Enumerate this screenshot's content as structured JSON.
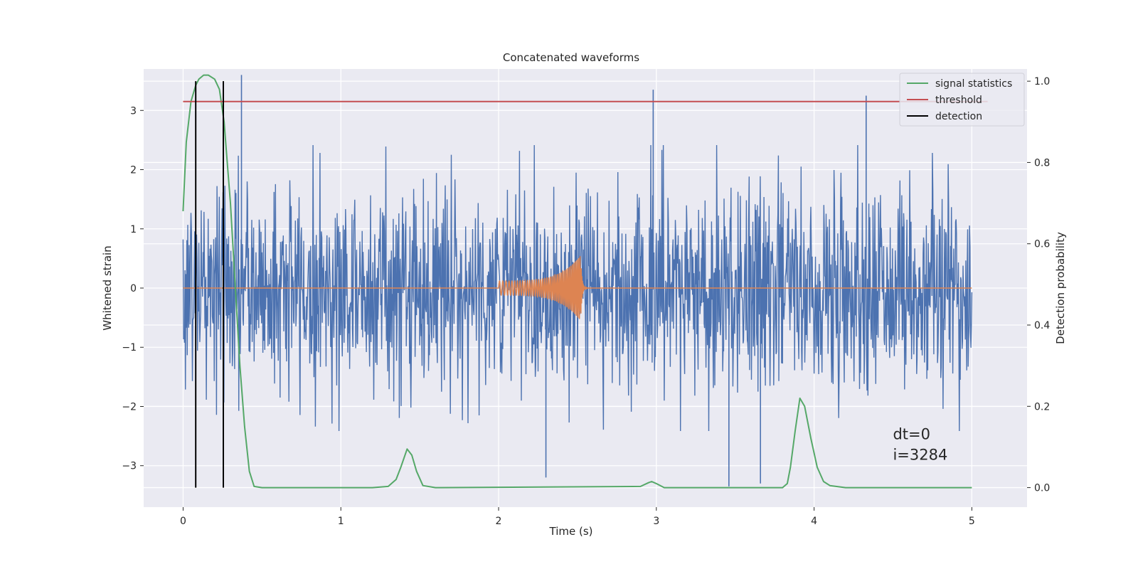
{
  "chart_data": {
    "type": "line",
    "title": "Concatenated waveforms",
    "xlabel": "Time (s)",
    "ylabel": "Whitened strain",
    "y2label": "Detection probability",
    "xlim": [
      -0.25,
      5.35
    ],
    "ylim": [
      -3.7,
      3.7
    ],
    "y2lim": [
      -0.048,
      1.03
    ],
    "xticks": [
      0,
      1,
      2,
      3,
      4,
      5
    ],
    "yticks": [
      -3,
      -2,
      -1,
      0,
      1,
      2,
      3
    ],
    "y2ticks": [
      0.0,
      0.2,
      0.4,
      0.6,
      0.8,
      1.0
    ],
    "y2ticklabels": [
      "0.0",
      "0.2",
      "0.4",
      "0.6",
      "0.8",
      "1.0"
    ],
    "grid": true,
    "legend_position": "top-right",
    "background": "#eaeaf2",
    "series": [
      {
        "name": "whitened strain",
        "color": "#4c72b0",
        "axis": "left",
        "kind": "noise",
        "x_range": [
          0,
          5
        ],
        "typical_peak": 2.3,
        "extreme_peaks": [
          {
            "x": 0.37,
            "y": 3.6
          },
          {
            "x": 2.98,
            "y": 3.35
          },
          {
            "x": 4.33,
            "y": 3.25
          },
          {
            "x": 2.3,
            "y": -3.2
          },
          {
            "x": 3.46,
            "y": -3.35
          },
          {
            "x": 3.66,
            "y": -3.3
          }
        ]
      },
      {
        "name": "injected signal",
        "color": "#dd8452",
        "axis": "left",
        "kind": "chirp",
        "x_range": [
          0,
          5
        ],
        "chirp_start": 2.0,
        "merger": 2.52,
        "amplitude_start": 0.12,
        "amplitude_merger": 0.55
      },
      {
        "name": "signal statistics",
        "color": "#55a868",
        "axis": "right",
        "x": [
          0.0,
          0.02,
          0.05,
          0.08,
          0.1,
          0.13,
          0.16,
          0.2,
          0.23,
          0.26,
          0.28,
          0.3,
          0.33,
          0.36,
          0.39,
          0.42,
          0.45,
          0.5,
          1.2,
          1.3,
          1.35,
          1.38,
          1.42,
          1.45,
          1.48,
          1.52,
          1.6,
          2.9,
          2.95,
          2.97,
          3.0,
          3.05,
          3.8,
          3.83,
          3.85,
          3.88,
          3.91,
          3.94,
          3.98,
          4.02,
          4.06,
          4.1,
          4.2,
          4.5,
          5.0
        ],
        "values": [
          0.68,
          0.85,
          0.95,
          0.99,
          1.005,
          1.015,
          1.015,
          1.005,
          0.98,
          0.9,
          0.8,
          0.7,
          0.5,
          0.3,
          0.15,
          0.04,
          0.003,
          0.0,
          0.0,
          0.003,
          0.02,
          0.05,
          0.095,
          0.08,
          0.04,
          0.005,
          0.0,
          0.003,
          0.012,
          0.015,
          0.01,
          0.0,
          0.0,
          0.01,
          0.05,
          0.14,
          0.22,
          0.2,
          0.12,
          0.05,
          0.015,
          0.005,
          0.0,
          0.0,
          0.0
        ]
      },
      {
        "name": "threshold",
        "color": "#c44e52",
        "axis": "right",
        "x": [
          0,
          5.1
        ],
        "values": [
          0.95,
          0.95
        ]
      },
      {
        "name": "detection",
        "color": "#000000",
        "axis": "right",
        "kind": "vlines",
        "x": [
          0.08,
          0.255
        ],
        "range": [
          0,
          1
        ]
      }
    ],
    "legend": [
      {
        "label": "signal statistics",
        "color": "#55a868"
      },
      {
        "label": "threshold",
        "color": "#c44e52"
      },
      {
        "label": "detection",
        "color": "#000000"
      }
    ],
    "annotations": [
      "dt=0",
      "i=3284"
    ]
  }
}
